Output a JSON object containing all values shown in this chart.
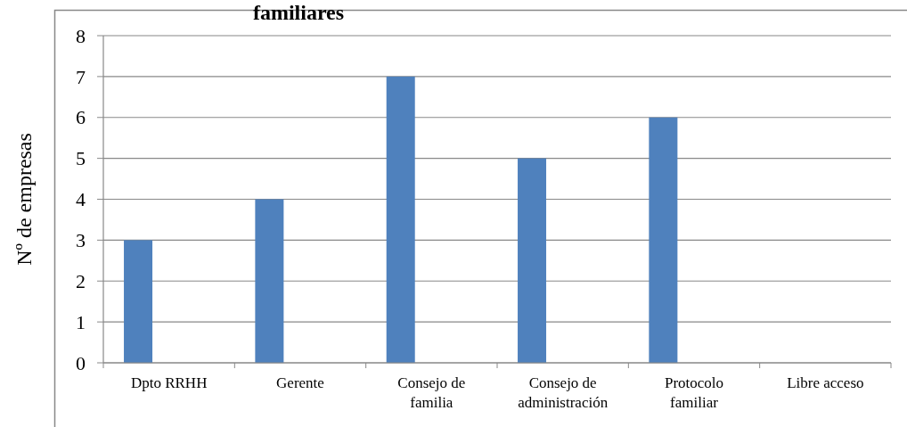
{
  "chart_data": {
    "type": "bar",
    "title": "familiares",
    "ylabel": "Nº de empresas",
    "categories": [
      "Dpto RRHH",
      "Gerente",
      "Consejo de familia",
      "Consejo de administración",
      "Protocolo familiar",
      "Libre acceso"
    ],
    "values": [
      3,
      4,
      7,
      5,
      6,
      0
    ],
    "color": "#4f81bd",
    "ylim": [
      0,
      8
    ],
    "yticks": [
      0,
      1,
      2,
      3,
      4,
      5,
      6,
      7,
      8
    ],
    "grid": "y"
  }
}
